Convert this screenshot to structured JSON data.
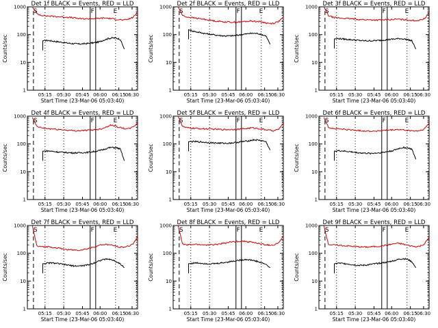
{
  "figure": {
    "background": "#ffffff",
    "foreground": "#000000",
    "red_color": "#d00000",
    "black_color": "#000000"
  },
  "chart_data": [
    {
      "type": "line",
      "title": "Det 1f BLACK = Events, RED = LLD",
      "xlabel": "Start Time (23-Mar-06 05:03:40)",
      "ylabel": "Counts/sec",
      "y_scale": "log",
      "ylim": [
        1,
        1000
      ],
      "x_ticks": [
        "05:15",
        "05:30",
        "05:45",
        "06:00",
        "06:15",
        "06:30"
      ],
      "y_ticks": [
        "1",
        "10",
        "100",
        "1000"
      ],
      "markers": [
        "S",
        "F",
        "E"
      ],
      "series": [
        {
          "name": "BLACK = Events",
          "color": "#000000",
          "y": [
            60,
            62,
            60,
            57,
            55,
            52,
            50,
            48,
            47,
            46,
            47,
            48,
            50,
            52,
            56,
            64,
            72,
            76,
            75,
            68,
            30
          ]
        },
        {
          "name": "RED = LLD",
          "color": "#d00000",
          "y": [
            1000,
            560,
            500,
            470,
            460,
            450,
            440,
            430,
            420,
            400,
            380,
            370,
            370,
            375,
            380,
            390,
            400,
            380,
            360,
            350,
            330,
            360,
            420,
            620
          ]
        }
      ]
    },
    {
      "type": "line",
      "title": "Det 2f BLACK = Events, RED = LLD",
      "xlabel": "Start Time (23-Mar-06 05:03:40)",
      "ylabel": "Counts/sec",
      "y_scale": "log",
      "ylim": [
        1,
        1000
      ],
      "x_ticks": [
        "05:15",
        "05:30",
        "05:45",
        "06:00",
        "06:15",
        "06:30"
      ],
      "y_ticks": [
        "1",
        "10",
        "100",
        "1000"
      ],
      "markers": [
        "S",
        "F",
        "E"
      ],
      "series": [
        {
          "name": "BLACK = Events",
          "color": "#000000",
          "y": [
            150,
            135,
            125,
            118,
            110,
            105,
            100,
            95,
            92,
            90,
            90,
            92,
            95,
            100,
            105,
            110,
            112,
            110,
            100,
            90,
            45
          ]
        },
        {
          "name": "RED = LLD",
          "color": "#d00000",
          "y": [
            1000,
            480,
            430,
            410,
            390,
            370,
            350,
            330,
            310,
            300,
            290,
            285,
            280,
            285,
            290,
            300,
            310,
            300,
            290,
            270,
            250,
            260,
            300,
            420
          ]
        }
      ]
    },
    {
      "type": "line",
      "title": "Det 3f BLACK = Events, RED = LLD",
      "xlabel": "Start Time (23-Mar-06 05:03:40)",
      "ylabel": "Counts/sec",
      "y_scale": "log",
      "ylim": [
        1,
        1000
      ],
      "x_ticks": [
        "05:15",
        "05:30",
        "05:45",
        "06:00",
        "06:15",
        "06:30"
      ],
      "y_ticks": [
        "1",
        "10",
        "100",
        "1000"
      ],
      "markers": [
        "S",
        "F",
        "E"
      ],
      "series": [
        {
          "name": "BLACK = Events",
          "color": "#000000",
          "y": [
            70,
            72,
            70,
            68,
            66,
            64,
            62,
            60,
            60,
            60,
            61,
            62,
            64,
            66,
            68,
            70,
            72,
            70,
            66,
            60,
            30
          ]
        },
        {
          "name": "RED = LLD",
          "color": "#d00000",
          "y": [
            1000,
            480,
            420,
            400,
            390,
            380,
            370,
            360,
            350,
            345,
            340,
            338,
            335,
            340,
            345,
            350,
            360,
            350,
            340,
            330,
            320,
            330,
            380,
            600
          ]
        }
      ]
    },
    {
      "type": "line",
      "title": "Det 4f BLACK = Events, RED = LLD",
      "xlabel": "Start Time (23-Mar-06 05:03:40)",
      "ylabel": "Counts/sec",
      "y_scale": "log",
      "ylim": [
        1,
        1000
      ],
      "x_ticks": [
        "05:15",
        "05:30",
        "05:45",
        "06:00",
        "06:15",
        "06:30"
      ],
      "y_ticks": [
        "1",
        "10",
        "100",
        "1000"
      ],
      "markers": [
        "S",
        "F",
        "E"
      ],
      "series": [
        {
          "name": "BLACK = Events",
          "color": "#000000",
          "y": [
            55,
            56,
            55,
            53,
            51,
            50,
            49,
            48,
            48,
            48,
            49,
            50,
            52,
            55,
            58,
            64,
            72,
            75,
            73,
            66,
            25
          ]
        },
        {
          "name": "RED = LLD",
          "color": "#d00000",
          "y": [
            900,
            420,
            380,
            360,
            350,
            340,
            330,
            320,
            310,
            300,
            300,
            305,
            310,
            320,
            330,
            350,
            400,
            480,
            450,
            400,
            360,
            350,
            400,
            580
          ]
        }
      ]
    },
    {
      "type": "line",
      "title": "Det 5f BLACK = Events, RED = LLD",
      "xlabel": "Start Time (23-Mar-06 05:03:40)",
      "ylabel": "Counts/sec",
      "y_scale": "log",
      "ylim": [
        1,
        1000
      ],
      "x_ticks": [
        "05:15",
        "05:30",
        "05:45",
        "06:00",
        "06:15",
        "06:30"
      ],
      "y_ticks": [
        "1",
        "10",
        "100",
        "1000"
      ],
      "markers": [
        "S",
        "F",
        "E"
      ],
      "series": [
        {
          "name": "BLACK = Events",
          "color": "#000000",
          "y": [
            120,
            122,
            120,
            118,
            115,
            112,
            110,
            108,
            107,
            106,
            107,
            110,
            115,
            120,
            125,
            132,
            140,
            138,
            130,
            120,
            60
          ]
        },
        {
          "name": "RED = LLD",
          "color": "#d00000",
          "y": [
            1000,
            420,
            380,
            370,
            360,
            355,
            350,
            345,
            340,
            335,
            330,
            330,
            335,
            340,
            350,
            360,
            380,
            370,
            350,
            330,
            310,
            300,
            340,
            560
          ]
        }
      ]
    },
    {
      "type": "line",
      "title": "Det 6f BLACK = Events, RED = LLD",
      "xlabel": "Start Time (23-Mar-06 05:03:40)",
      "ylabel": "Counts/sec",
      "y_scale": "log",
      "ylim": [
        1,
        1000
      ],
      "x_ticks": [
        "05:15",
        "05:30",
        "05:45",
        "06:00",
        "06:15",
        "06:30"
      ],
      "y_ticks": [
        "1",
        "10",
        "100",
        "1000"
      ],
      "markers": [
        "S",
        "F",
        "E"
      ],
      "series": [
        {
          "name": "BLACK = Events",
          "color": "#000000",
          "y": [
            55,
            57,
            56,
            54,
            52,
            50,
            48,
            47,
            46,
            46,
            47,
            48,
            50,
            53,
            56,
            62,
            70,
            74,
            72,
            65,
            28
          ]
        },
        {
          "name": "RED = LLD",
          "color": "#d00000",
          "y": [
            900,
            400,
            360,
            350,
            340,
            330,
            320,
            310,
            300,
            295,
            290,
            290,
            295,
            300,
            310,
            320,
            330,
            320,
            310,
            300,
            290,
            300,
            350,
            560
          ]
        }
      ]
    },
    {
      "type": "line",
      "title": "Det 7f BLACK = Events, RED = LLD",
      "xlabel": "Start Time (23-Mar-06 05:03:40)",
      "ylabel": "Counts/sec",
      "y_scale": "log",
      "ylim": [
        1,
        1000
      ],
      "x_ticks": [
        "05:15",
        "05:30",
        "05:45",
        "06:00",
        "06:15",
        "06:30"
      ],
      "y_ticks": [
        "1",
        "10",
        "100",
        "1000"
      ],
      "markers": [
        "S",
        "F",
        "E"
      ],
      "series": [
        {
          "name": "BLACK = Events",
          "color": "#000000",
          "y": [
            42,
            44,
            45,
            44,
            42,
            40,
            38,
            36,
            35,
            35,
            36,
            38,
            42,
            48,
            55,
            60,
            62,
            58,
            50,
            42,
            30
          ]
        },
        {
          "name": "RED = LLD",
          "color": "#d00000",
          "y": [
            1000,
            180,
            170,
            175,
            170,
            160,
            150,
            140,
            135,
            130,
            130,
            135,
            145,
            160,
            180,
            200,
            210,
            200,
            185,
            170,
            165,
            180,
            220,
            400
          ]
        }
      ]
    },
    {
      "type": "line",
      "title": "Det 8f BLACK = Events, RED = LLD",
      "xlabel": "Start Time (23-Mar-06 05:03:40)",
      "ylabel": "Counts/sec",
      "y_scale": "log",
      "ylim": [
        1,
        1000
      ],
      "x_ticks": [
        "05:15",
        "05:30",
        "05:45",
        "06:00",
        "06:15",
        "06:30"
      ],
      "y_ticks": [
        "1",
        "10",
        "100",
        "1000"
      ],
      "markers": [
        "S",
        "F",
        "E"
      ],
      "series": [
        {
          "name": "BLACK = Events",
          "color": "#000000",
          "y": [
            42,
            44,
            45,
            44,
            43,
            42,
            42,
            43,
            45,
            47,
            50,
            52,
            55,
            58,
            60,
            58,
            55,
            50,
            45,
            40,
            30
          ]
        },
        {
          "name": "RED = LLD",
          "color": "#d00000",
          "y": [
            1000,
            210,
            200,
            205,
            210,
            205,
            200,
            200,
            205,
            215,
            230,
            245,
            260,
            270,
            275,
            265,
            250,
            235,
            220,
            205,
            195,
            200,
            240,
            420
          ]
        }
      ]
    },
    {
      "type": "line",
      "title": "Det 9f BLACK = Events, RED = LLD",
      "xlabel": "Start Time (23-Mar-06 05:03:40)",
      "ylabel": "Counts/sec",
      "y_scale": "log",
      "ylim": [
        1,
        1000
      ],
      "x_ticks": [
        "05:15",
        "05:30",
        "05:45",
        "06:00",
        "06:15",
        "06:30"
      ],
      "y_ticks": [
        "1",
        "10",
        "100",
        "1000"
      ],
      "markers": [
        "S",
        "F",
        "E"
      ],
      "series": [
        {
          "name": "BLACK = Events",
          "color": "#000000",
          "y": [
            42,
            44,
            43,
            42,
            40,
            38,
            37,
            37,
            38,
            40,
            42,
            44,
            46,
            48,
            52,
            56,
            62,
            64,
            60,
            50,
            30
          ]
        },
        {
          "name": "RED = LLD",
          "color": "#d00000",
          "y": [
            1000,
            210,
            200,
            195,
            190,
            185,
            180,
            175,
            170,
            168,
            170,
            175,
            180,
            190,
            200,
            215,
            230,
            220,
            200,
            185,
            175,
            180,
            220,
            380
          ]
        }
      ]
    }
  ]
}
